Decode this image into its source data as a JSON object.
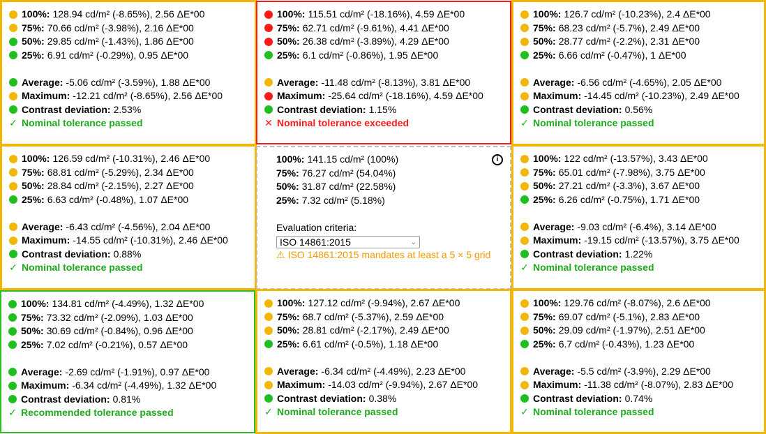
{
  "cells": [
    {
      "border": "yellow",
      "rows": [
        {
          "dot": "yellow",
          "label": "100%:",
          "value": "128.94 cd/m² (-8.65%), 2.56 ΔE*00"
        },
        {
          "dot": "yellow",
          "label": "75%:",
          "value": "70.66 cd/m² (-3.98%), 2.16 ΔE*00"
        },
        {
          "dot": "green",
          "label": "50%:",
          "value": "29.85 cd/m² (-1.43%), 1.86 ΔE*00"
        },
        {
          "dot": "green",
          "label": "25%:",
          "value": "6.91 cd/m² (-0.29%), 0.95 ΔE*00"
        }
      ],
      "summary": [
        {
          "dot": "green",
          "label": "Average:",
          "value": "-5.06 cd/m² (-3.59%), 1.88 ΔE*00"
        },
        {
          "dot": "yellow",
          "label": "Maximum:",
          "value": "-12.21 cd/m² (-8.65%), 2.56 ΔE*00"
        },
        {
          "dot": "green",
          "label": "Contrast deviation:",
          "value": "2.53%"
        }
      ],
      "status": {
        "mark": "✓",
        "type": "pass",
        "text": "Nominal tolerance passed"
      }
    },
    {
      "border": "red",
      "rows": [
        {
          "dot": "red",
          "label": "100%:",
          "value": "115.51 cd/m² (-18.16%), 4.59 ΔE*00"
        },
        {
          "dot": "red",
          "label": "75%:",
          "value": "62.71 cd/m² (-9.61%), 4.41 ΔE*00"
        },
        {
          "dot": "red",
          "label": "50%:",
          "value": "26.38 cd/m² (-3.89%), 4.29 ΔE*00"
        },
        {
          "dot": "green",
          "label": "25%:",
          "value": "6.1 cd/m² (-0.86%), 1.95 ΔE*00"
        }
      ],
      "summary": [
        {
          "dot": "yellow",
          "label": "Average:",
          "value": "-11.48 cd/m² (-8.13%), 3.81 ΔE*00"
        },
        {
          "dot": "red",
          "label": "Maximum:",
          "value": "-25.64 cd/m² (-18.16%), 4.59 ΔE*00"
        },
        {
          "dot": "green",
          "label": "Contrast deviation:",
          "value": "1.15%"
        }
      ],
      "status": {
        "mark": "✕",
        "type": "fail",
        "text": "Nominal tolerance exceeded"
      }
    },
    {
      "border": "yellow",
      "rows": [
        {
          "dot": "yellow",
          "label": "100%:",
          "value": "126.7 cd/m² (-10.23%), 2.4 ΔE*00"
        },
        {
          "dot": "yellow",
          "label": "75%:",
          "value": "68.23 cd/m² (-5.7%), 2.49 ΔE*00"
        },
        {
          "dot": "yellow",
          "label": "50%:",
          "value": "28.77 cd/m² (-2.2%), 2.31 ΔE*00"
        },
        {
          "dot": "green",
          "label": "25%:",
          "value": "6.66 cd/m² (-0.47%), 1 ΔE*00"
        }
      ],
      "summary": [
        {
          "dot": "yellow",
          "label": "Average:",
          "value": "-6.56 cd/m² (-4.65%), 2.05 ΔE*00"
        },
        {
          "dot": "yellow",
          "label": "Maximum:",
          "value": "-14.45 cd/m² (-10.23%), 2.49 ΔE*00"
        },
        {
          "dot": "green",
          "label": "Contrast deviation:",
          "value": "0.56%"
        }
      ],
      "status": {
        "mark": "✓",
        "type": "pass",
        "text": "Nominal tolerance passed"
      }
    },
    {
      "border": "yellow",
      "rows": [
        {
          "dot": "yellow",
          "label": "100%:",
          "value": "126.59 cd/m² (-10.31%), 2.46 ΔE*00"
        },
        {
          "dot": "yellow",
          "label": "75%:",
          "value": "68.81 cd/m² (-5.29%), 2.34 ΔE*00"
        },
        {
          "dot": "yellow",
          "label": "50%:",
          "value": "28.84 cd/m² (-2.15%), 2.27 ΔE*00"
        },
        {
          "dot": "green",
          "label": "25%:",
          "value": "6.63 cd/m² (-0.48%), 1.07 ΔE*00"
        }
      ],
      "summary": [
        {
          "dot": "yellow",
          "label": "Average:",
          "value": "-6.43 cd/m² (-4.56%), 2.04 ΔE*00"
        },
        {
          "dot": "yellow",
          "label": "Maximum:",
          "value": "-14.55 cd/m² (-10.31%), 2.46 ΔE*00"
        },
        {
          "dot": "green",
          "label": "Contrast deviation:",
          "value": "0.88%"
        }
      ],
      "status": {
        "mark": "✓",
        "type": "pass",
        "text": "Nominal tolerance passed"
      }
    },
    {
      "border": "yellow",
      "rows": [
        {
          "dot": "yellow",
          "label": "100%:",
          "value": "122 cd/m² (-13.57%), 3.43 ΔE*00"
        },
        {
          "dot": "yellow",
          "label": "75%:",
          "value": "65.01 cd/m² (-7.98%), 3.75 ΔE*00"
        },
        {
          "dot": "yellow",
          "label": "50%:",
          "value": "27.21 cd/m² (-3.3%), 3.67 ΔE*00"
        },
        {
          "dot": "green",
          "label": "25%:",
          "value": "6.26 cd/m² (-0.75%), 1.71 ΔE*00"
        }
      ],
      "summary": [
        {
          "dot": "yellow",
          "label": "Average:",
          "value": "-9.03 cd/m² (-6.4%), 3.14 ΔE*00"
        },
        {
          "dot": "yellow",
          "label": "Maximum:",
          "value": "-19.15 cd/m² (-13.57%), 3.75 ΔE*00"
        },
        {
          "dot": "green",
          "label": "Contrast deviation:",
          "value": "1.22%"
        }
      ],
      "status": {
        "mark": "✓",
        "type": "pass",
        "text": "Nominal tolerance passed"
      }
    },
    {
      "border": "green",
      "rows": [
        {
          "dot": "green",
          "label": "100%:",
          "value": "134.81 cd/m² (-4.49%), 1.32 ΔE*00"
        },
        {
          "dot": "green",
          "label": "75%:",
          "value": "73.32 cd/m² (-2.09%), 1.03 ΔE*00"
        },
        {
          "dot": "green",
          "label": "50%:",
          "value": "30.69 cd/m² (-0.84%), 0.96 ΔE*00"
        },
        {
          "dot": "green",
          "label": "25%:",
          "value": "7.02 cd/m² (-0.21%), 0.57 ΔE*00"
        }
      ],
      "summary": [
        {
          "dot": "green",
          "label": "Average:",
          "value": "-2.69 cd/m² (-1.91%), 0.97 ΔE*00"
        },
        {
          "dot": "green",
          "label": "Maximum:",
          "value": "-6.34 cd/m² (-4.49%), 1.32 ΔE*00"
        },
        {
          "dot": "green",
          "label": "Contrast deviation:",
          "value": "0.81%"
        }
      ],
      "status": {
        "mark": "✓",
        "type": "pass",
        "text": "Recommended tolerance passed"
      }
    },
    {
      "border": "yellow",
      "rows": [
        {
          "dot": "yellow",
          "label": "100%:",
          "value": "127.12 cd/m² (-9.94%), 2.67 ΔE*00"
        },
        {
          "dot": "yellow",
          "label": "75%:",
          "value": "68.7 cd/m² (-5.37%), 2.59 ΔE*00"
        },
        {
          "dot": "yellow",
          "label": "50%:",
          "value": "28.81 cd/m² (-2.17%), 2.49 ΔE*00"
        },
        {
          "dot": "green",
          "label": "25%:",
          "value": "6.61 cd/m² (-0.5%), 1.18 ΔE*00"
        }
      ],
      "summary": [
        {
          "dot": "yellow",
          "label": "Average:",
          "value": "-6.34 cd/m² (-4.49%), 2.23 ΔE*00"
        },
        {
          "dot": "yellow",
          "label": "Maximum:",
          "value": "-14.03 cd/m² (-9.94%), 2.67 ΔE*00"
        },
        {
          "dot": "green",
          "label": "Contrast deviation:",
          "value": "0.38%"
        }
      ],
      "status": {
        "mark": "✓",
        "type": "pass",
        "text": "Nominal tolerance passed"
      }
    },
    {
      "border": "yellow",
      "rows": [
        {
          "dot": "yellow",
          "label": "100%:",
          "value": "129.76 cd/m² (-8.07%), 2.6 ΔE*00"
        },
        {
          "dot": "yellow",
          "label": "75%:",
          "value": "69.07 cd/m² (-5.1%), 2.83 ΔE*00"
        },
        {
          "dot": "yellow",
          "label": "50%:",
          "value": "29.09 cd/m² (-1.97%), 2.51 ΔE*00"
        },
        {
          "dot": "green",
          "label": "25%:",
          "value": "6.7 cd/m² (-0.43%), 1.23 ΔE*00"
        }
      ],
      "summary": [
        {
          "dot": "yellow",
          "label": "Average:",
          "value": "-5.5 cd/m² (-3.9%), 2.29 ΔE*00"
        },
        {
          "dot": "yellow",
          "label": "Maximum:",
          "value": "-11.38 cd/m² (-8.07%), 2.83 ΔE*00"
        },
        {
          "dot": "green",
          "label": "Contrast deviation:",
          "value": "0.74%"
        }
      ],
      "status": {
        "mark": "✓",
        "type": "pass",
        "text": "Nominal tolerance passed"
      }
    }
  ],
  "center": {
    "rows": [
      {
        "label": "100%:",
        "value": "141.15 cd/m² (100%)"
      },
      {
        "label": "75%:",
        "value": "76.27 cd/m² (54.04%)"
      },
      {
        "label": "50%:",
        "value": "31.87 cd/m² (22.58%)"
      },
      {
        "label": "25%:",
        "value": "7.32 cd/m² (5.18%)"
      }
    ],
    "criteria_label": "Evaluation criteria:",
    "criteria_value": "ISO 14861:2015",
    "warning_icon": "⚠",
    "warning_text": "ISO 14861:2015 mandates at least a 5 × 5 grid",
    "info_icon": "i"
  },
  "colors": {
    "yellow": "#f2b705",
    "red": "#ff1a1a",
    "green": "#1fbf1f",
    "pass": "#1fa91f",
    "warn": "#f29900"
  }
}
